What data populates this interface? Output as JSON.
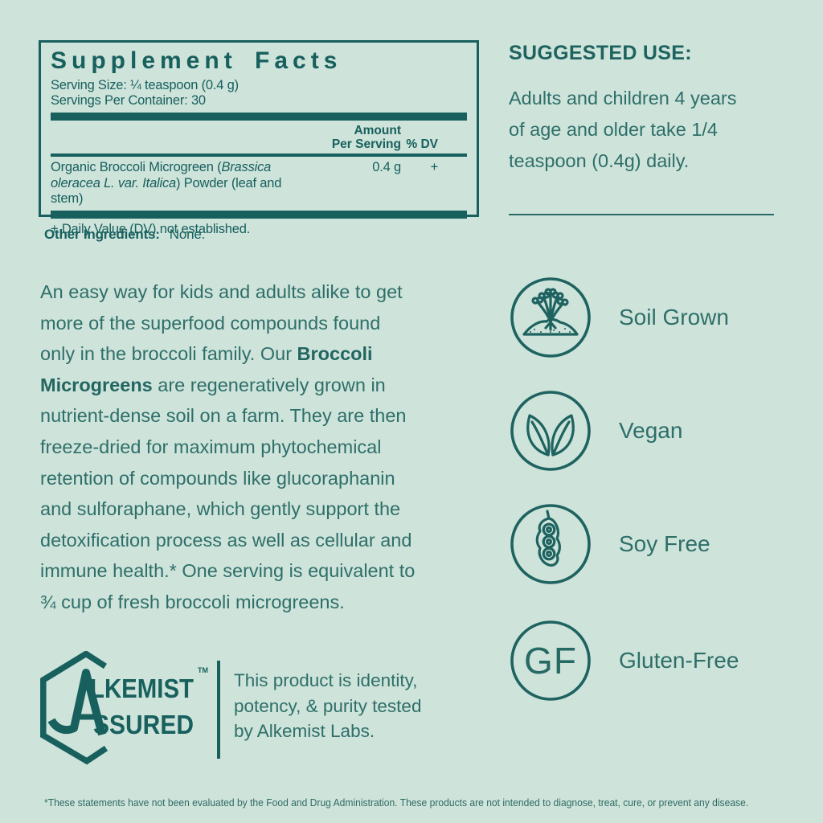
{
  "colors": {
    "background": "#cee3da",
    "teal_dark": "#17605e",
    "teal_body": "#2e6f69"
  },
  "supplement_facts": {
    "title": "Supplement Facts",
    "serving_size": "Serving Size: ¼ teaspoon (0.4 g)",
    "servings_per_container": "Servings Per Container: 30",
    "columns": {
      "amount_line1": "Amount",
      "amount_line2": "Per Serving",
      "dv": "% DV"
    },
    "rows": [
      {
        "name_pre": "Organic Broccoli Microgreen (",
        "name_italic": "Brassica oleracea L. var. Italica",
        "name_post": ") Powder (leaf and stem)",
        "amount": "0.4 g",
        "dv": "+"
      }
    ],
    "footnote": "+ Daily Value (DV) not established."
  },
  "other_ingredients": {
    "label": "Other Ingredients:",
    "value": "None."
  },
  "suggested_use": {
    "title": "SUGGESTED USE:",
    "lines": [
      "Adults and children 4 years",
      "of age and older take 1/4",
      "teaspoon (0.4g) daily."
    ]
  },
  "description": {
    "bold_terms": "Broccoli|Microgreens",
    "lines": [
      "An easy way for kids and adults alike to get",
      "more of the superfood compounds found",
      "only in the broccoli family. Our Broccoli",
      "Microgreens are regeneratively grown in",
      "nutrient-dense soil on a farm. They are then",
      "freeze-dried for maximum phytochemical",
      "retention of compounds like glucoraphanin",
      "and sulforaphane, which gently support the",
      "detoxification process as well as cellular and",
      "immune health.* One serving is equivalent to",
      "¾ cup of fresh broccoli microgreens."
    ]
  },
  "badges": {
    "items": [
      {
        "icon": "soil-grown-icon",
        "label": "Soil Grown"
      },
      {
        "icon": "vegan-leaves-icon",
        "label": "Vegan"
      },
      {
        "icon": "soy-pod-icon",
        "label": "Soy Free"
      },
      {
        "icon": "gluten-free-gf-icon",
        "label": "Gluten-Free",
        "icon_text": "GF"
      }
    ]
  },
  "assurance": {
    "logo_letter": "A",
    "logo_line1": "LKEMIST",
    "logo_line2": "SSURED",
    "trademark": "TM",
    "text_lines": [
      "This product is identity,",
      "potency, & purity tested",
      "by Alkemist Labs."
    ]
  },
  "footer": {
    "disclaimer": "*These statements have not been evaluated by the Food and Drug Administration. These products are not intended to diagnose, treat, cure, or prevent any disease."
  }
}
